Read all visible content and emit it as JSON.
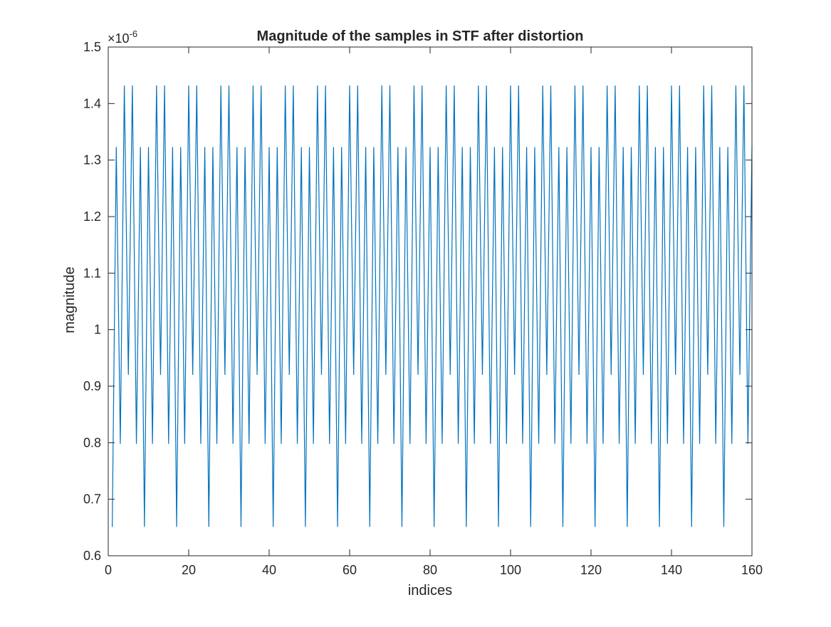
{
  "figure": {
    "background": "#ffffff",
    "line_color": "#0072bd",
    "axis_color": "#262626"
  },
  "chart_data": {
    "type": "line",
    "title": "Magnitude of the samples in STF after distortion",
    "xlabel": "indices",
    "ylabel": "magnitude",
    "exponent_label": "×10",
    "exponent_power": "-6",
    "xlim": [
      0,
      160
    ],
    "ylim": [
      0.6,
      1.5
    ],
    "x_ticks": [
      0,
      20,
      40,
      60,
      80,
      100,
      120,
      140,
      160
    ],
    "y_ticks": [
      0.6,
      0.7,
      0.8,
      0.9,
      1,
      1.1,
      1.2,
      1.3,
      1.4,
      1.5
    ],
    "x_tick_labels": [
      "0",
      "20",
      "40",
      "60",
      "80",
      "100",
      "120",
      "140",
      "160"
    ],
    "y_tick_labels": [
      "0.6",
      "0.7",
      "0.8",
      "0.9",
      "1",
      "1.1",
      "1.2",
      "1.3",
      "1.4",
      "1.5"
    ],
    "grid": false,
    "box": true,
    "series": [
      {
        "x": [
          1,
          2,
          3,
          4,
          5,
          6,
          7,
          8,
          9,
          10,
          11,
          12,
          13,
          14,
          15,
          16,
          17,
          18,
          19,
          20,
          21,
          22,
          23,
          24,
          25,
          26,
          27,
          28,
          29,
          30,
          31,
          32,
          33,
          34,
          35,
          36,
          37,
          38,
          39,
          40,
          41,
          42,
          43,
          44,
          45,
          46,
          47,
          48,
          49,
          50,
          51,
          52,
          53,
          54,
          55,
          56,
          57,
          58,
          59,
          60,
          61,
          62,
          63,
          64,
          65,
          66,
          67,
          68,
          69,
          70,
          71,
          72,
          73,
          74,
          75,
          76,
          77,
          78,
          79,
          80,
          81,
          82,
          83,
          84,
          85,
          86,
          87,
          88,
          89,
          90,
          91,
          92,
          93,
          94,
          95,
          96,
          97,
          98,
          99,
          100,
          101,
          102,
          103,
          104,
          105,
          106,
          107,
          108,
          109,
          110,
          111,
          112,
          113,
          114,
          115,
          116,
          117,
          118,
          119,
          120,
          121,
          122,
          123,
          124,
          125,
          126,
          127,
          128,
          129,
          130,
          131,
          132,
          133,
          134,
          135,
          136,
          137,
          138,
          139,
          140,
          141,
          142,
          143,
          144,
          145,
          146,
          147,
          148,
          149,
          150,
          151,
          152,
          153,
          154,
          155,
          156,
          157,
          158,
          159,
          160
        ],
        "y": [
          0.651,
          1.323,
          0.798,
          1.432,
          0.92,
          1.432,
          0.798,
          1.323,
          0.651,
          1.323,
          0.798,
          1.432,
          0.92,
          1.432,
          0.798,
          1.323,
          0.651,
          1.323,
          0.798,
          1.432,
          0.92,
          1.432,
          0.798,
          1.323,
          0.651,
          1.323,
          0.798,
          1.432,
          0.92,
          1.432,
          0.798,
          1.323,
          0.651,
          1.323,
          0.798,
          1.432,
          0.92,
          1.432,
          0.798,
          1.323,
          0.651,
          1.323,
          0.798,
          1.432,
          0.92,
          1.432,
          0.798,
          1.323,
          0.651,
          1.323,
          0.798,
          1.432,
          0.92,
          1.432,
          0.798,
          1.323,
          0.651,
          1.323,
          0.798,
          1.432,
          0.92,
          1.432,
          0.798,
          1.323,
          0.651,
          1.323,
          0.798,
          1.432,
          0.92,
          1.432,
          0.798,
          1.323,
          0.651,
          1.323,
          0.798,
          1.432,
          0.92,
          1.432,
          0.798,
          1.323,
          0.651,
          1.323,
          0.798,
          1.432,
          0.92,
          1.432,
          0.798,
          1.323,
          0.651,
          1.323,
          0.798,
          1.432,
          0.92,
          1.432,
          0.798,
          1.323,
          0.651,
          1.323,
          0.798,
          1.432,
          0.92,
          1.432,
          0.798,
          1.323,
          0.651,
          1.323,
          0.798,
          1.432,
          0.92,
          1.432,
          0.798,
          1.323,
          0.651,
          1.323,
          0.798,
          1.432,
          0.92,
          1.432,
          0.798,
          1.323,
          0.651,
          1.323,
          0.798,
          1.432,
          0.92,
          1.432,
          0.798,
          1.323,
          0.651,
          1.323,
          0.798,
          1.432,
          0.92,
          1.432,
          0.798,
          1.323,
          0.651,
          1.323,
          0.798,
          1.432,
          0.92,
          1.432,
          0.798,
          1.323,
          0.651,
          1.323,
          0.798,
          1.432,
          0.92,
          1.432,
          0.798,
          1.323,
          0.651,
          1.323,
          0.798,
          1.432,
          0.92,
          1.432,
          0.798,
          1.323
        ]
      }
    ]
  }
}
